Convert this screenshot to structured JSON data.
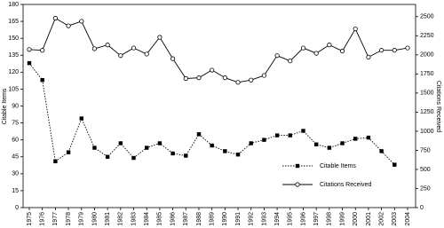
{
  "chart_data": {
    "type": "line",
    "y_label": "Citable Items",
    "y2_label": "Citations Received",
    "categories": [
      "1975",
      "1976",
      "1977",
      "1978",
      "1979",
      "1980",
      "1981",
      "1982",
      "1983",
      "1984",
      "1985",
      "1986",
      "1987",
      "1988",
      "1989",
      "1990",
      "1991",
      "1992",
      "1993",
      "1994",
      "1995",
      "1996",
      "1997",
      "1998",
      "1999",
      "2000",
      "2001",
      "2002",
      "2003",
      "2004"
    ],
    "series": [
      {
        "name": "Citable Items",
        "color": "#000000",
        "line_style": "dotted",
        "marker": "square",
        "axis": "y",
        "values": [
          128,
          113,
          41,
          49,
          79,
          53,
          45,
          57,
          44,
          53,
          57,
          48,
          46,
          65,
          55,
          50,
          47,
          57,
          60,
          64,
          64,
          68,
          56,
          53,
          57,
          61,
          62,
          50,
          38,
          null
        ]
      },
      {
        "name": "Citations Received",
        "color": "#000000",
        "line_style": "solid",
        "marker": "circle",
        "axis": "y2",
        "values": [
          2070,
          2060,
          2480,
          2380,
          2440,
          2080,
          2130,
          1990,
          2090,
          2010,
          2230,
          1950,
          1690,
          1700,
          1800,
          1700,
          1640,
          1670,
          1730,
          1990,
          1920,
          2090,
          2020,
          2130,
          2050,
          2340,
          1970,
          2060,
          2060,
          2090
        ]
      }
    ],
    "ylim": [
      0,
      180
    ],
    "yticks": [
      0,
      15,
      30,
      45,
      60,
      75,
      90,
      105,
      120,
      135,
      150,
      165,
      180
    ],
    "y2lim": [
      0,
      2660
    ],
    "y2ticks": [
      0,
      250,
      500,
      750,
      1000,
      1250,
      1500,
      1750,
      2000,
      2250,
      2500
    ],
    "legend": "lower right",
    "grid": false
  }
}
